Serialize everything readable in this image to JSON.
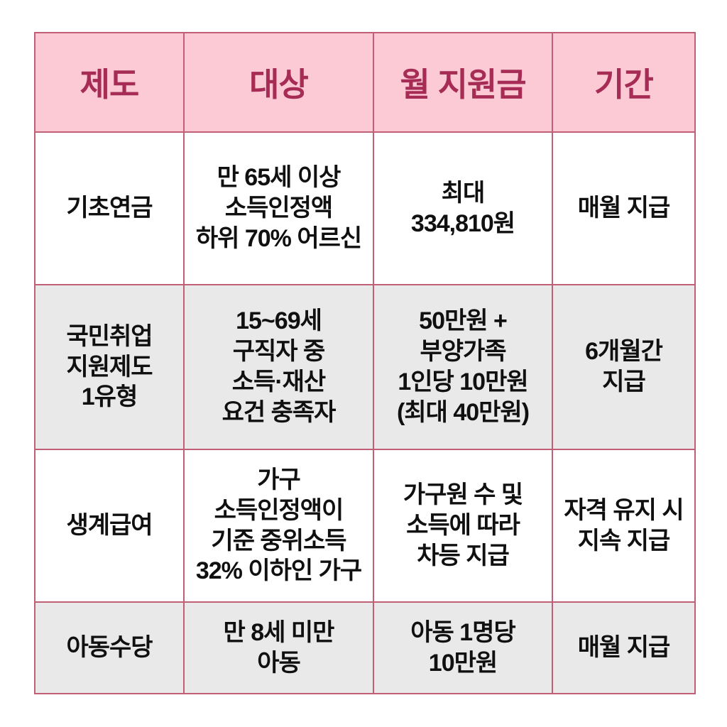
{
  "colors": {
    "header_bg": "#fbcad5",
    "header_text": "#a62c55",
    "border_color": "#c05f76",
    "row_bg": "#ffffff",
    "row_alt_bg": "#e9e9e9",
    "body_text": "#101010"
  },
  "table": {
    "headers": {
      "program": "제도",
      "target": "대상",
      "amount": "월 지원금",
      "period": "기간"
    },
    "rows": [
      {
        "program": "기초연금",
        "target": "만 65세 이상\n소득인정액\n하위 70% 어르신",
        "amount": "최대\n334,810원",
        "period": "매월 지급"
      },
      {
        "program": "국민취업\n지원제도\n1유형",
        "target": "15~69세\n구직자 중\n소득·재산\n요건 충족자",
        "amount": "50만원 +\n부양가족\n1인당 10만원\n(최대 40만원)",
        "period": "6개월간\n지급"
      },
      {
        "program": "생계급여",
        "target": "가구\n소득인정액이\n기준 중위소득\n32% 이하인 가구",
        "amount": "가구원 수 및\n소득에 따라\n차등 지급",
        "period": "자격 유지 시\n지속 지급"
      },
      {
        "program": "아동수당",
        "target": "만 8세 미만\n아동",
        "amount": "아동 1명당\n10만원",
        "period": "매월 지급"
      }
    ]
  },
  "chart_data": {
    "type": "table",
    "title": "",
    "columns": [
      "제도",
      "대상",
      "월 지원금",
      "기간"
    ],
    "rows": [
      [
        "기초연금",
        "만 65세 이상 소득인정액 하위 70% 어르신",
        "최대 334,810원",
        "매월 지급"
      ],
      [
        "국민취업 지원제도 1유형",
        "15~69세 구직자 중 소득·재산 요건 충족자",
        "50만원 + 부양가족 1인당 10만원 (최대 40만원)",
        "6개월간 지급"
      ],
      [
        "생계급여",
        "가구 소득인정액이 기준 중위소득 32% 이하인 가구",
        "가구원 수 및 소득에 따라 차등 지급",
        "자격 유지 시 지속 지급"
      ],
      [
        "아동수당",
        "만 8세 미만 아동",
        "아동 1명당 10만원",
        "매월 지급"
      ]
    ],
    "layout_hints": {
      "header_fill": "#fbcad5",
      "zebra_fill_rows_2_and_4": "#e9e9e9",
      "grid": true
    }
  }
}
